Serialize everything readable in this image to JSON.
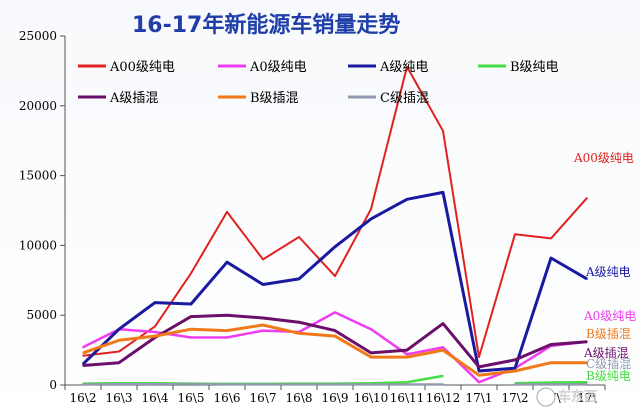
{
  "chart_data": {
    "type": "line",
    "title": "16-17年新能源车销量走势",
    "categories": [
      "16\\2",
      "16\\3",
      "16\\4",
      "16\\5",
      "16\\6",
      "16\\7",
      "16\\8",
      "16\\9",
      "16\\10",
      "16\\11",
      "16\\12",
      "17\\1",
      "17\\2",
      "17\\3",
      "17\\4"
    ],
    "x_tick_labels": [
      "16\\2",
      "16\\3",
      "16\\4",
      "16\\5",
      "16\\6",
      "16\\7",
      "16\\8",
      "16\\9",
      "16\\10",
      "16\\11",
      "16\\12",
      "17\\1",
      "17\\2",
      "17\\",
      "17\\"
    ],
    "ylim": [
      0,
      25000
    ],
    "yticks": [
      0,
      5000,
      10000,
      15000,
      20000,
      25000
    ],
    "grid": false,
    "legend_position": "top",
    "series": [
      {
        "name": "A00级纯电",
        "color": "#e0221f",
        "width": 2,
        "end_label": "A00级纯电",
        "values": [
          2100,
          2400,
          4200,
          8000,
          12400,
          9000,
          10600,
          7800,
          12600,
          22800,
          18200,
          2000,
          10800,
          10500,
          13400
        ]
      },
      {
        "name": "A0级纯电",
        "color": "#f03cf0",
        "width": 2.5,
        "end_label": "A0级纯电",
        "values": [
          2700,
          4000,
          3800,
          3400,
          3400,
          3900,
          3800,
          5200,
          4000,
          2200,
          2700,
          200,
          1200,
          2800,
          3100
        ]
      },
      {
        "name": "A级纯电",
        "color": "#1a1aa0",
        "width": 3,
        "end_label": "A级纯电",
        "values": [
          1500,
          4000,
          5900,
          5800,
          8800,
          7200,
          7600,
          9900,
          11900,
          13300,
          13800,
          1000,
          1200,
          9100,
          7600
        ]
      },
      {
        "name": "B级纯电",
        "color": "#44dd44",
        "width": 2.5,
        "end_label": "B级纯电",
        "values": [
          100,
          120,
          120,
          100,
          80,
          80,
          100,
          100,
          120,
          200,
          650,
          null,
          120,
          180,
          200
        ]
      },
      {
        "name": "A级插混",
        "color": "#6a0f6a",
        "width": 3,
        "end_label": "A级插混",
        "values": [
          1400,
          1600,
          3400,
          4900,
          5000,
          4800,
          4500,
          3900,
          2300,
          2500,
          4400,
          1300,
          1800,
          2900,
          3100
        ]
      },
      {
        "name": "B级插混",
        "color": "#f07a1a",
        "width": 3,
        "end_label": "B级插混",
        "values": [
          2300,
          3200,
          3500,
          4000,
          3900,
          4300,
          3700,
          3500,
          2000,
          2000,
          2500,
          700,
          1000,
          1600,
          1600
        ]
      },
      {
        "name": "C级插混",
        "color": "#8f9ab0",
        "width": 2,
        "end_label": "C级插混",
        "values": [
          60,
          70,
          70,
          80,
          60,
          60,
          60,
          60,
          60,
          60,
          60,
          null,
          60,
          60,
          60
        ]
      }
    ]
  },
  "watermark": "车东西"
}
